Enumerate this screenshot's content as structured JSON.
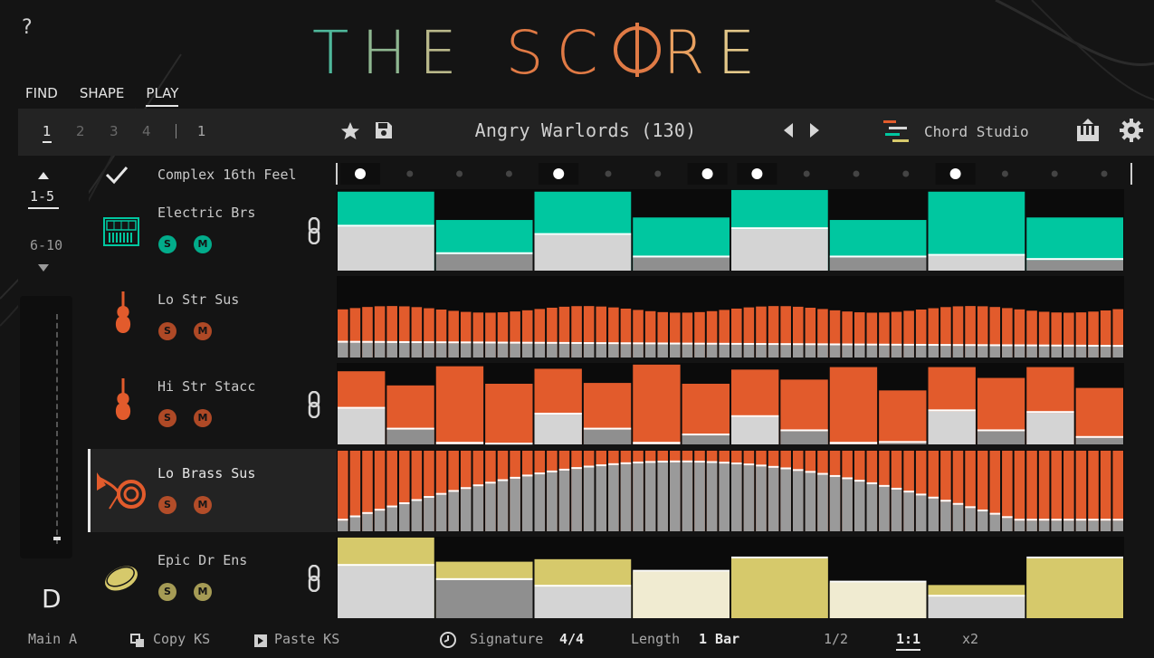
{
  "app": {
    "title_letters": [
      "T",
      "H",
      "E",
      " ",
      "S",
      "C",
      "O",
      "R",
      "E"
    ],
    "help": "?"
  },
  "colors": {
    "teal": "#00c7a0",
    "orange": "#e25b2c",
    "olive": "#d6c96b",
    "grey": "#c9c9c9",
    "darkgrey": "#8f8f8f",
    "cream": "#f0ebd1"
  },
  "modes": [
    {
      "label": "FIND"
    },
    {
      "label": "SHAPE"
    },
    {
      "label": "PLAY",
      "active": true
    }
  ],
  "toolbar": {
    "pages": [
      "1",
      "2",
      "3",
      "4"
    ],
    "active_page": "1",
    "extra_page": "1",
    "preset_name": "Angry Warlords (130)",
    "chord_studio": "Chord Studio",
    "icons": [
      "star-icon",
      "save-icon",
      "prev-arrow-icon",
      "next-arrow-icon",
      "chord-studio-icon",
      "piano-icon",
      "gear-icon"
    ]
  },
  "left": {
    "range_active": "1-5",
    "range_other": "6-10",
    "key": "D"
  },
  "feel": {
    "label": "Complex 16th Feel",
    "steps": [
      1,
      0,
      0,
      0,
      1,
      0,
      0,
      1,
      1,
      0,
      0,
      0,
      1,
      0,
      0,
      0
    ]
  },
  "tracks": [
    {
      "name": "Electric Brs",
      "icon": "keyboard-icon",
      "color": "teal",
      "s": "S",
      "m": "M",
      "linked": true
    },
    {
      "name": "Lo Str Sus",
      "icon": "violin-icon",
      "color": "orange",
      "s": "S",
      "m": "M",
      "linked": false
    },
    {
      "name": "Hi Str Stacc",
      "icon": "violin-icon",
      "color": "orange",
      "s": "S",
      "m": "M",
      "linked": true
    },
    {
      "name": "Lo Brass Sus",
      "icon": "french-horn-icon",
      "color": "orange",
      "s": "S",
      "m": "M",
      "linked": false,
      "selected": true
    },
    {
      "name": "Epic Dr Ens",
      "icon": "drum-icon",
      "color": "olive",
      "s": "S",
      "m": "M",
      "linked": true
    }
  ],
  "bottom": {
    "main": "Main A",
    "copy": "Copy KS",
    "paste": "Paste KS",
    "signature_label": "Signature",
    "signature_value": "4/4",
    "length_label": "Length",
    "length_value": "1 Bar",
    "speeds": [
      "1/2",
      "1:1",
      "x2"
    ],
    "active_speed": "1:1"
  }
}
